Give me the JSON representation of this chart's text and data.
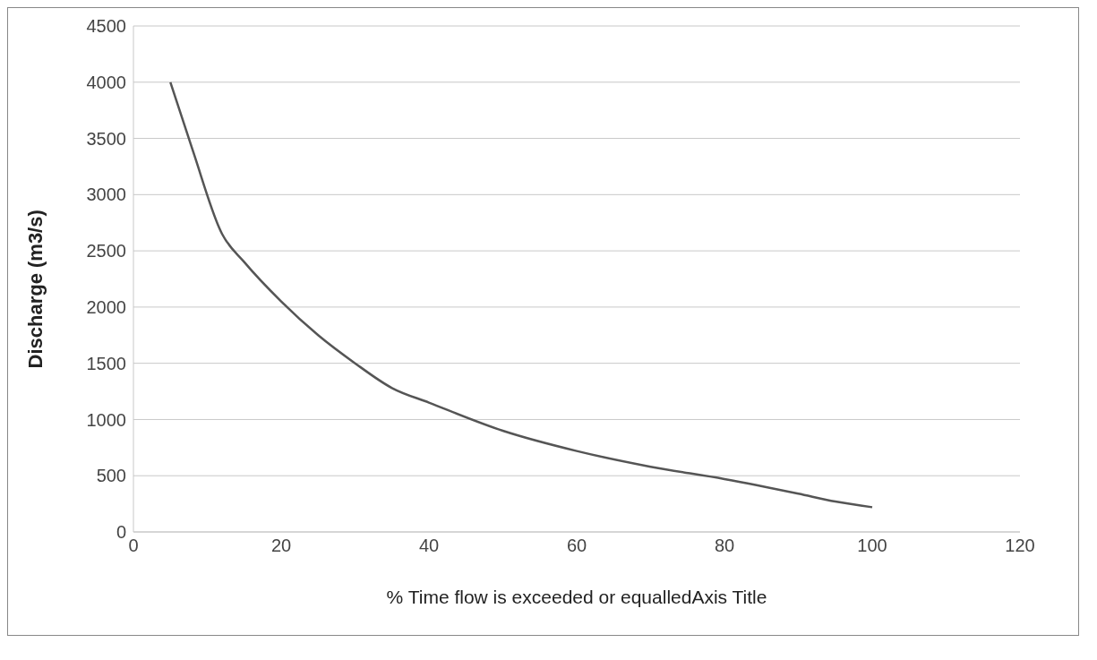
{
  "chart_data": {
    "type": "line",
    "xlabel": "% Time flow is exceeded or equalledAxis Title",
    "ylabel": "Discharge (m3/s)",
    "series": [
      {
        "color": "#555555",
        "x": [
          5,
          8,
          12,
          15,
          20,
          25,
          30,
          35,
          40,
          50,
          60,
          70,
          80,
          90,
          95,
          100
        ],
        "values": [
          4000,
          3400,
          2650,
          2400,
          2050,
          1750,
          1500,
          1280,
          1150,
          900,
          720,
          580,
          470,
          340,
          270,
          220
        ]
      }
    ],
    "xlim": [
      0,
      120
    ],
    "xticks": [
      0,
      20,
      40,
      60,
      80,
      100,
      120
    ],
    "ylim": [
      0,
      4500
    ],
    "yticks": [
      0,
      500,
      1000,
      1500,
      2000,
      2500,
      3000,
      3500,
      4000,
      4500
    ],
    "grid": "y",
    "marker": "none",
    "line_style": "solid"
  }
}
